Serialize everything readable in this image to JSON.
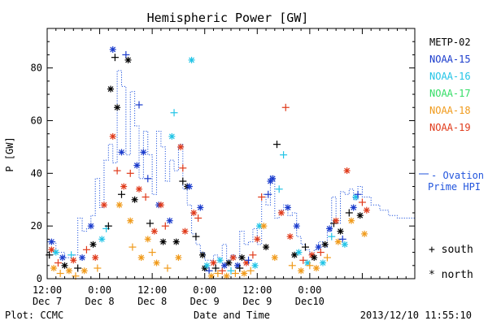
{
  "chart_data": {
    "type": "scatter",
    "title": "Hemispheric Power [GW]",
    "xlabel": "Date and Time",
    "ylabel": "P [GW]",
    "xlim": [
      0,
      84
    ],
    "ylim": [
      0,
      95
    ],
    "x_ticks": [
      {
        "x": 0,
        "line1": "12:00",
        "line2": "Dec 7"
      },
      {
        "x": 12,
        "line1": "0:00",
        "line2": "Dec 8"
      },
      {
        "x": 24,
        "line1": "12:00",
        "line2": "Dec 8"
      },
      {
        "x": 36,
        "line1": "0:00",
        "line2": "Dec 9"
      },
      {
        "x": 48,
        "line1": "12:00",
        "line2": "Dec 9"
      },
      {
        "x": 60,
        "line1": "0:00",
        "line2": "Dec10"
      }
    ],
    "y_ticks": [
      0,
      20,
      40,
      60,
      80
    ],
    "legend": {
      "placement": "right",
      "entries": [
        {
          "label": "METP-02",
          "color": "#000000"
        },
        {
          "label": "NOAA-15",
          "color": "#1a3bcc"
        },
        {
          "label": "NOAA-16",
          "color": "#22c4e6"
        },
        {
          "label": "NOAA-17",
          "color": "#33dd66"
        },
        {
          "label": "NOAA-18",
          "color": "#f09a1a"
        },
        {
          "label": "NOAA-19",
          "color": "#e03a1a"
        }
      ],
      "symbols": [
        {
          "symbol": "+",
          "label": "south"
        },
        {
          "symbol": "*",
          "label": "north"
        }
      ]
    },
    "ovation": {
      "label_line1": "- Ovation",
      "label_line2": "Prime HPI",
      "color": "#2255dd"
    },
    "ovation_series": [
      [
        0,
        14
      ],
      [
        2,
        10
      ],
      [
        4,
        8
      ],
      [
        6,
        9
      ],
      [
        7,
        23
      ],
      [
        8,
        18
      ],
      [
        9,
        19
      ],
      [
        10,
        24
      ],
      [
        11,
        38
      ],
      [
        12,
        27
      ],
      [
        13,
        45
      ],
      [
        14,
        51
      ],
      [
        15,
        44
      ],
      [
        16,
        79
      ],
      [
        17,
        73
      ],
      [
        18,
        47
      ],
      [
        19,
        71
      ],
      [
        20,
        58
      ],
      [
        21,
        38
      ],
      [
        22,
        56
      ],
      [
        23,
        47
      ],
      [
        24,
        32
      ],
      [
        25,
        56
      ],
      [
        26,
        50
      ],
      [
        27,
        37
      ],
      [
        28,
        45
      ],
      [
        29,
        41
      ],
      [
        30,
        51
      ],
      [
        31,
        34
      ],
      [
        32,
        28
      ],
      [
        33,
        17
      ],
      [
        34,
        13
      ],
      [
        35,
        10
      ],
      [
        36,
        7
      ],
      [
        37,
        7
      ],
      [
        38,
        9
      ],
      [
        39,
        8
      ],
      [
        40,
        13
      ],
      [
        41,
        7
      ],
      [
        42,
        9
      ],
      [
        43,
        8
      ],
      [
        44,
        18
      ],
      [
        45,
        13
      ],
      [
        46,
        14
      ],
      [
        47,
        19
      ],
      [
        48,
        13
      ],
      [
        49,
        32
      ],
      [
        50,
        28
      ],
      [
        51,
        39
      ],
      [
        52,
        23
      ],
      [
        53,
        26
      ],
      [
        54,
        28
      ],
      [
        55,
        24
      ],
      [
        56,
        25
      ],
      [
        57,
        16
      ],
      [
        58,
        13
      ],
      [
        59,
        11
      ],
      [
        60,
        9
      ],
      [
        61,
        11
      ],
      [
        62,
        14
      ],
      [
        63,
        12
      ],
      [
        64,
        18
      ],
      [
        65,
        31
      ],
      [
        66,
        21
      ],
      [
        67,
        33
      ],
      [
        68,
        32
      ],
      [
        69,
        34
      ],
      [
        70,
        30
      ],
      [
        71,
        35
      ],
      [
        72,
        31
      ],
      [
        74,
        28
      ],
      [
        76,
        26
      ],
      [
        78,
        24
      ],
      [
        80,
        23
      ]
    ],
    "points": [
      {
        "x": 1,
        "y": 14,
        "sat": "NOAA-15",
        "hemi": "north"
      },
      {
        "x": 1,
        "y": 11,
        "sat": "NOAA-19",
        "hemi": "north"
      },
      {
        "x": 0.5,
        "y": 9,
        "sat": "METP-02",
        "hemi": "south"
      },
      {
        "x": 1.5,
        "y": 4,
        "sat": "NOAA-18",
        "hemi": "north"
      },
      {
        "x": 2,
        "y": 10,
        "sat": "NOAA-16",
        "hemi": "north"
      },
      {
        "x": 2.5,
        "y": 6,
        "sat": "NOAA-19",
        "hemi": "south"
      },
      {
        "x": 3,
        "y": 2,
        "sat": "NOAA-18",
        "hemi": "south"
      },
      {
        "x": 3.5,
        "y": 8,
        "sat": "NOAA-15",
        "hemi": "north"
      },
      {
        "x": 4,
        "y": 5,
        "sat": "METP-02",
        "hemi": "north"
      },
      {
        "x": 5,
        "y": 3,
        "sat": "NOAA-18",
        "hemi": "north"
      },
      {
        "x": 5.5,
        "y": 9,
        "sat": "NOAA-16",
        "hemi": "south"
      },
      {
        "x": 6,
        "y": 7,
        "sat": "NOAA-19",
        "hemi": "north"
      },
      {
        "x": 6.5,
        "y": 1,
        "sat": "NOAA-18",
        "hemi": "south"
      },
      {
        "x": 7,
        "y": 4,
        "sat": "METP-02",
        "hemi": "south"
      },
      {
        "x": 8,
        "y": 8,
        "sat": "NOAA-15",
        "hemi": "north"
      },
      {
        "x": 8.5,
        "y": 3,
        "sat": "NOAA-18",
        "hemi": "north"
      },
      {
        "x": 9,
        "y": 11,
        "sat": "NOAA-19",
        "hemi": "south"
      },
      {
        "x": 10,
        "y": 20,
        "sat": "NOAA-15",
        "hemi": "north"
      },
      {
        "x": 10.5,
        "y": 13,
        "sat": "METP-02",
        "hemi": "north"
      },
      {
        "x": 11,
        "y": 8,
        "sat": "NOAA-19",
        "hemi": "north"
      },
      {
        "x": 11.5,
        "y": 4,
        "sat": "NOAA-18",
        "hemi": "south"
      },
      {
        "x": 12.5,
        "y": 15,
        "sat": "NOAA-16",
        "hemi": "north"
      },
      {
        "x": 13,
        "y": 28,
        "sat": "NOAA-19",
        "hemi": "north"
      },
      {
        "x": 13.5,
        "y": 19,
        "sat": "NOAA-16",
        "hemi": "south"
      },
      {
        "x": 14,
        "y": 20,
        "sat": "METP-02",
        "hemi": "south"
      },
      {
        "x": 14.5,
        "y": 72,
        "sat": "METP-02",
        "hemi": "north"
      },
      {
        "x": 15,
        "y": 87,
        "sat": "NOAA-15",
        "hemi": "north"
      },
      {
        "x": 15,
        "y": 54,
        "sat": "NOAA-19",
        "hemi": "north"
      },
      {
        "x": 15.5,
        "y": 84,
        "sat": "METP-02",
        "hemi": "south"
      },
      {
        "x": 16,
        "y": 41,
        "sat": "NOAA-19",
        "hemi": "south"
      },
      {
        "x": 16,
        "y": 65,
        "sat": "METP-02",
        "hemi": "north"
      },
      {
        "x": 16.5,
        "y": 28,
        "sat": "NOAA-18",
        "hemi": "north"
      },
      {
        "x": 17,
        "y": 48,
        "sat": "NOAA-15",
        "hemi": "north"
      },
      {
        "x": 17,
        "y": 32,
        "sat": "METP-02",
        "hemi": "south"
      },
      {
        "x": 17.5,
        "y": 35,
        "sat": "NOAA-19",
        "hemi": "north"
      },
      {
        "x": 18,
        "y": 85,
        "sat": "NOAA-15",
        "hemi": "south"
      },
      {
        "x": 18.5,
        "y": 83,
        "sat": "METP-02",
        "hemi": "north"
      },
      {
        "x": 19,
        "y": 40,
        "sat": "NOAA-19",
        "hemi": "south"
      },
      {
        "x": 19,
        "y": 22,
        "sat": "NOAA-18",
        "hemi": "north"
      },
      {
        "x": 19.5,
        "y": 12,
        "sat": "NOAA-18",
        "hemi": "south"
      },
      {
        "x": 20,
        "y": 30,
        "sat": "METP-02",
        "hemi": "north"
      },
      {
        "x": 20.5,
        "y": 43,
        "sat": "NOAA-15",
        "hemi": "north"
      },
      {
        "x": 21,
        "y": 66,
        "sat": "NOAA-15",
        "hemi": "south"
      },
      {
        "x": 21,
        "y": 34,
        "sat": "NOAA-19",
        "hemi": "north"
      },
      {
        "x": 21.5,
        "y": 8,
        "sat": "NOAA-18",
        "hemi": "north"
      },
      {
        "x": 22,
        "y": 48,
        "sat": "NOAA-15",
        "hemi": "north"
      },
      {
        "x": 22.5,
        "y": 31,
        "sat": "NOAA-19",
        "hemi": "south"
      },
      {
        "x": 23,
        "y": 38,
        "sat": "NOAA-15",
        "hemi": "south"
      },
      {
        "x": 23,
        "y": 15,
        "sat": "NOAA-18",
        "hemi": "north"
      },
      {
        "x": 23.5,
        "y": 21,
        "sat": "METP-02",
        "hemi": "south"
      },
      {
        "x": 24,
        "y": 10,
        "sat": "NOAA-18",
        "hemi": "south"
      },
      {
        "x": 24.5,
        "y": 18,
        "sat": "NOAA-19",
        "hemi": "north"
      },
      {
        "x": 25,
        "y": 6,
        "sat": "NOAA-18",
        "hemi": "north"
      },
      {
        "x": 25.5,
        "y": 28,
        "sat": "NOAA-15",
        "hemi": "north"
      },
      {
        "x": 26,
        "y": 28,
        "sat": "NOAA-19",
        "hemi": "north"
      },
      {
        "x": 26.5,
        "y": 14,
        "sat": "METP-02",
        "hemi": "north"
      },
      {
        "x": 27,
        "y": 20,
        "sat": "NOAA-19",
        "hemi": "south"
      },
      {
        "x": 27.5,
        "y": 4,
        "sat": "NOAA-18",
        "hemi": "south"
      },
      {
        "x": 28,
        "y": 22,
        "sat": "NOAA-15",
        "hemi": "north"
      },
      {
        "x": 28.5,
        "y": 54,
        "sat": "NOAA-16",
        "hemi": "north"
      },
      {
        "x": 29,
        "y": 63,
        "sat": "NOAA-16",
        "hemi": "south"
      },
      {
        "x": 29.5,
        "y": 14,
        "sat": "METP-02",
        "hemi": "north"
      },
      {
        "x": 30,
        "y": 8,
        "sat": "NOAA-18",
        "hemi": "north"
      },
      {
        "x": 30.5,
        "y": 50,
        "sat": "NOAA-19",
        "hemi": "north"
      },
      {
        "x": 31,
        "y": 37,
        "sat": "METP-02",
        "hemi": "south"
      },
      {
        "x": 31,
        "y": 42,
        "sat": "NOAA-19",
        "hemi": "south"
      },
      {
        "x": 31.5,
        "y": 18,
        "sat": "NOAA-19",
        "hemi": "north"
      },
      {
        "x": 32,
        "y": 35,
        "sat": "METP-02",
        "hemi": "north"
      },
      {
        "x": 32.5,
        "y": 35,
        "sat": "NOAA-15",
        "hemi": "north"
      },
      {
        "x": 33,
        "y": 83,
        "sat": "NOAA-16",
        "hemi": "north"
      },
      {
        "x": 33.5,
        "y": 25,
        "sat": "NOAA-19",
        "hemi": "north"
      },
      {
        "x": 34,
        "y": 16,
        "sat": "METP-02",
        "hemi": "south"
      },
      {
        "x": 34.5,
        "y": 23,
        "sat": "NOAA-19",
        "hemi": "south"
      },
      {
        "x": 35,
        "y": 27,
        "sat": "NOAA-15",
        "hemi": "north"
      },
      {
        "x": 35.5,
        "y": 9,
        "sat": "METP-02",
        "hemi": "north"
      },
      {
        "x": 36,
        "y": 4,
        "sat": "METP-02",
        "hemi": "north"
      },
      {
        "x": 36.5,
        "y": 5,
        "sat": "NOAA-16",
        "hemi": "north"
      },
      {
        "x": 37,
        "y": 3,
        "sat": "NOAA-15",
        "hemi": "south"
      },
      {
        "x": 37.5,
        "y": 1,
        "sat": "NOAA-18",
        "hemi": "north"
      },
      {
        "x": 38,
        "y": 6,
        "sat": "NOAA-19",
        "hemi": "north"
      },
      {
        "x": 38.5,
        "y": 4,
        "sat": "METP-02",
        "hemi": "south"
      },
      {
        "x": 39,
        "y": 2,
        "sat": "NOAA-18",
        "hemi": "south"
      },
      {
        "x": 39.5,
        "y": 7,
        "sat": "NOAA-16",
        "hemi": "north"
      },
      {
        "x": 40,
        "y": 3,
        "sat": "NOAA-19",
        "hemi": "south"
      },
      {
        "x": 40.5,
        "y": 5,
        "sat": "NOAA-15",
        "hemi": "north"
      },
      {
        "x": 41,
        "y": 1,
        "sat": "NOAA-18",
        "hemi": "north"
      },
      {
        "x": 41.5,
        "y": 6,
        "sat": "METP-02",
        "hemi": "north"
      },
      {
        "x": 42,
        "y": 3,
        "sat": "NOAA-16",
        "hemi": "south"
      },
      {
        "x": 42.5,
        "y": 8,
        "sat": "NOAA-19",
        "hemi": "north"
      },
      {
        "x": 43,
        "y": 2,
        "sat": "NOAA-18",
        "hemi": "south"
      },
      {
        "x": 43.5,
        "y": 5,
        "sat": "NOAA-15",
        "hemi": "north"
      },
      {
        "x": 44,
        "y": 4,
        "sat": "METP-02",
        "hemi": "south"
      },
      {
        "x": 44.5,
        "y": 8,
        "sat": "METP-02",
        "hemi": "north"
      },
      {
        "x": 45,
        "y": 2,
        "sat": "NOAA-18",
        "hemi": "north"
      },
      {
        "x": 45.5,
        "y": 6,
        "sat": "NOAA-19",
        "hemi": "north"
      },
      {
        "x": 46,
        "y": 7,
        "sat": "NOAA-15",
        "hemi": "south"
      },
      {
        "x": 46.5,
        "y": 3,
        "sat": "NOAA-18",
        "hemi": "south"
      },
      {
        "x": 47,
        "y": 9,
        "sat": "NOAA-19",
        "hemi": "south"
      },
      {
        "x": 47.5,
        "y": 5,
        "sat": "NOAA-16",
        "hemi": "north"
      },
      {
        "x": 48,
        "y": 15,
        "sat": "NOAA-19",
        "hemi": "north"
      },
      {
        "x": 48.5,
        "y": 20,
        "sat": "NOAA-16",
        "hemi": "north"
      },
      {
        "x": 49,
        "y": 31,
        "sat": "NOAA-19",
        "hemi": "south"
      },
      {
        "x": 49.5,
        "y": 20,
        "sat": "NOAA-18",
        "hemi": "north"
      },
      {
        "x": 50,
        "y": 12,
        "sat": "METP-02",
        "hemi": "north"
      },
      {
        "x": 50.5,
        "y": 32,
        "sat": "NOAA-15",
        "hemi": "south"
      },
      {
        "x": 51,
        "y": 37,
        "sat": "NOAA-15",
        "hemi": "north"
      },
      {
        "x": 51.5,
        "y": 38,
        "sat": "NOAA-15",
        "hemi": "north"
      },
      {
        "x": 52,
        "y": 8,
        "sat": "NOAA-18",
        "hemi": "north"
      },
      {
        "x": 52.5,
        "y": 51,
        "sat": "METP-02",
        "hemi": "south"
      },
      {
        "x": 53,
        "y": 34,
        "sat": "NOAA-16",
        "hemi": "south"
      },
      {
        "x": 53.5,
        "y": 25,
        "sat": "NOAA-19",
        "hemi": "north"
      },
      {
        "x": 54,
        "y": 47,
        "sat": "NOAA-16",
        "hemi": "south"
      },
      {
        "x": 54.5,
        "y": 65,
        "sat": "NOAA-19",
        "hemi": "south"
      },
      {
        "x": 55,
        "y": 27,
        "sat": "NOAA-15",
        "hemi": "north"
      },
      {
        "x": 55.5,
        "y": 16,
        "sat": "NOAA-19",
        "hemi": "north"
      },
      {
        "x": 56,
        "y": 5,
        "sat": "NOAA-18",
        "hemi": "south"
      },
      {
        "x": 56.5,
        "y": 9,
        "sat": "METP-02",
        "hemi": "north"
      },
      {
        "x": 57,
        "y": 20,
        "sat": "NOAA-15",
        "hemi": "north"
      },
      {
        "x": 57.5,
        "y": 10,
        "sat": "NOAA-16",
        "hemi": "north"
      },
      {
        "x": 58,
        "y": 3,
        "sat": "NOAA-18",
        "hemi": "north"
      },
      {
        "x": 58.5,
        "y": 7,
        "sat": "NOAA-19",
        "hemi": "south"
      },
      {
        "x": 59,
        "y": 12,
        "sat": "METP-02",
        "hemi": "south"
      },
      {
        "x": 59.5,
        "y": 6,
        "sat": "NOAA-16",
        "hemi": "north"
      },
      {
        "x": 60,
        "y": 5,
        "sat": "NOAA-18",
        "hemi": "south"
      },
      {
        "x": 60.5,
        "y": 9,
        "sat": "NOAA-19",
        "hemi": "north"
      },
      {
        "x": 61,
        "y": 8,
        "sat": "METP-02",
        "hemi": "north"
      },
      {
        "x": 61.5,
        "y": 4,
        "sat": "NOAA-18",
        "hemi": "north"
      },
      {
        "x": 62,
        "y": 12,
        "sat": "NOAA-15",
        "hemi": "north"
      },
      {
        "x": 62.5,
        "y": 10,
        "sat": "NOAA-19",
        "hemi": "south"
      },
      {
        "x": 63,
        "y": 6,
        "sat": "NOAA-16",
        "hemi": "north"
      },
      {
        "x": 63.5,
        "y": 13,
        "sat": "METP-02",
        "hemi": "north"
      },
      {
        "x": 64,
        "y": 8,
        "sat": "NOAA-18",
        "hemi": "south"
      },
      {
        "x": 64.5,
        "y": 19,
        "sat": "NOAA-15",
        "hemi": "north"
      },
      {
        "x": 65,
        "y": 16,
        "sat": "NOAA-16",
        "hemi": "south"
      },
      {
        "x": 65.5,
        "y": 21,
        "sat": "METP-02",
        "hemi": "south"
      },
      {
        "x": 66,
        "y": 22,
        "sat": "NOAA-19",
        "hemi": "north"
      },
      {
        "x": 66.5,
        "y": 14,
        "sat": "NOAA-18",
        "hemi": "north"
      },
      {
        "x": 67,
        "y": 18,
        "sat": "METP-02",
        "hemi": "north"
      },
      {
        "x": 67.5,
        "y": 15,
        "sat": "NOAA-15",
        "hemi": "south"
      },
      {
        "x": 68,
        "y": 13,
        "sat": "NOAA-16",
        "hemi": "north"
      },
      {
        "x": 68.5,
        "y": 41,
        "sat": "NOAA-19",
        "hemi": "north"
      },
      {
        "x": 69,
        "y": 25,
        "sat": "METP-02",
        "hemi": "south"
      },
      {
        "x": 69.5,
        "y": 22,
        "sat": "NOAA-18",
        "hemi": "north"
      },
      {
        "x": 70,
        "y": 27,
        "sat": "NOAA-15",
        "hemi": "north"
      },
      {
        "x": 70.5,
        "y": 31,
        "sat": "NOAA-16",
        "hemi": "north"
      },
      {
        "x": 71,
        "y": 32,
        "sat": "NOAA-15",
        "hemi": "south"
      },
      {
        "x": 71.5,
        "y": 24,
        "sat": "METP-02",
        "hemi": "north"
      },
      {
        "x": 72,
        "y": 29,
        "sat": "NOAA-19",
        "hemi": "south"
      },
      {
        "x": 72.5,
        "y": 17,
        "sat": "NOAA-18",
        "hemi": "north"
      },
      {
        "x": 73,
        "y": 26,
        "sat": "NOAA-19",
        "hemi": "north"
      }
    ]
  },
  "footer": {
    "left": "Plot: CCMC",
    "right": "2013/12/10 11:55:10"
  }
}
